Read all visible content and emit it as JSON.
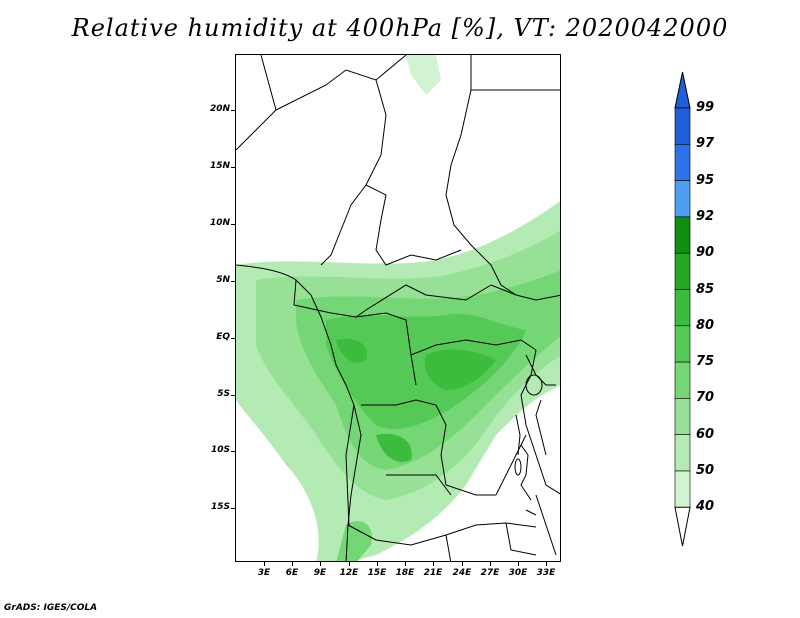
{
  "title": "Relative humidity at 400hPa [%], VT: 2020042000",
  "credit": "GrADS: IGES/COLA",
  "lat_labels": [
    "20N",
    "15N",
    "10N",
    "5N",
    "EQ",
    "5S",
    "10S",
    "15S"
  ],
  "lon_labels": [
    "3E",
    "6E",
    "9E",
    "12E",
    "15E",
    "18E",
    "21E",
    "24E",
    "27E",
    "30E",
    "33E"
  ],
  "colorbar": {
    "levels": [
      "99",
      "97",
      "95",
      "92",
      "90",
      "85",
      "80",
      "75",
      "70",
      "60",
      "50",
      "40"
    ],
    "colors": [
      "#1f5fd8",
      "#2a73e8",
      "#4c9ef0",
      "#0f8f0f",
      "#24a824",
      "#3cbc3c",
      "#55c955",
      "#74d674",
      "#96e196",
      "#b4eab4",
      "#d2f3d2",
      "#ecfbec"
    ],
    "top_arrow_color": "#1f5fd8",
    "bottom_arrow_color": "#ffffff"
  }
}
